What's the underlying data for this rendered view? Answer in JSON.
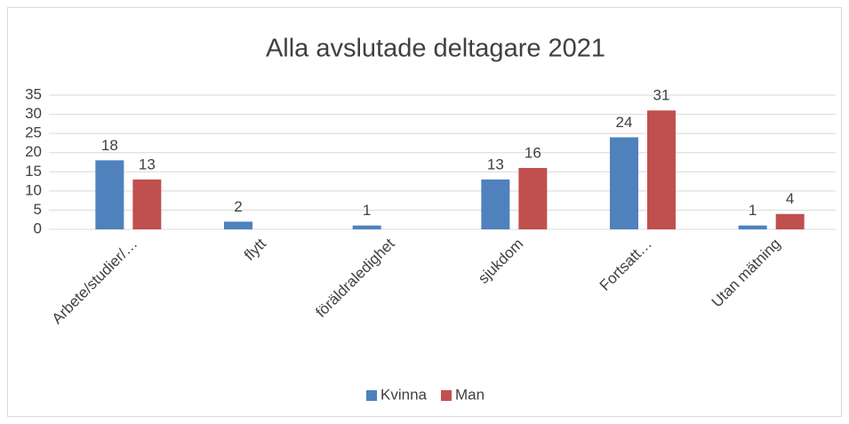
{
  "chart_data": {
    "type": "bar",
    "title": "Alla avslutade deltagare 2021",
    "categories": [
      "Arbete/studier/…",
      "flytt",
      "föräldraledighet",
      "sjukdom",
      "Fortsatt…",
      "Utan mätning"
    ],
    "series": [
      {
        "name": "Kvinna",
        "color": "#4f81bd",
        "values": [
          18,
          2,
          1,
          13,
          24,
          1
        ]
      },
      {
        "name": "Man",
        "color": "#c0504d",
        "values": [
          13,
          null,
          null,
          16,
          31,
          4
        ]
      }
    ],
    "ylim": [
      0,
      35
    ],
    "yticks": [
      0,
      5,
      10,
      15,
      20,
      25,
      30,
      35
    ],
    "grid": true,
    "legend": "bottom"
  }
}
